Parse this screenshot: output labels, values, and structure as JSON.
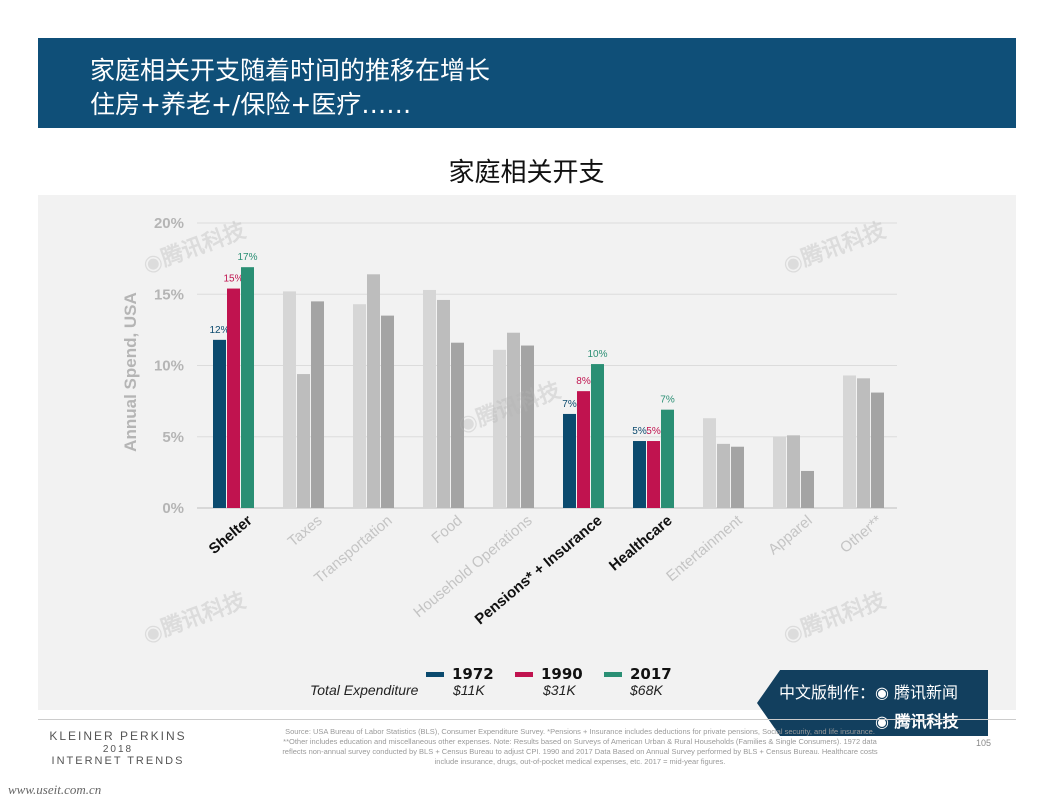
{
  "header": {
    "title_line1": "家庭相关开支随着时间的推移在增长",
    "title_line2": "住房+养老+/保险+医疗……",
    "banner_color": "#0f4f78"
  },
  "chart_data": {
    "type": "bar",
    "title": "家庭相关开支",
    "ylabel": "Annual Spend, USA",
    "ylim": [
      0,
      20
    ],
    "yticks": [
      "0%",
      "5%",
      "10%",
      "15%",
      "20%"
    ],
    "grid": true,
    "categories": [
      "Shelter",
      "Taxes",
      "Transportation",
      "Food",
      "Household Operations",
      "Pensions* + Insurance",
      "Healthcare",
      "Entertainment",
      "Apparel",
      "Other**"
    ],
    "highlighted_categories": [
      "Shelter",
      "Pensions* + Insurance",
      "Healthcare"
    ],
    "series": [
      {
        "name": "1972",
        "color": "#0b4a6e",
        "muted_color": "#d6d6d6",
        "values": [
          11.8,
          15.2,
          14.3,
          15.3,
          11.1,
          6.6,
          4.7,
          6.3,
          5.0,
          9.3
        ]
      },
      {
        "name": "1990",
        "color": "#c0134f",
        "muted_color": "#bdbdbd",
        "values": [
          15.4,
          9.4,
          16.4,
          14.6,
          12.3,
          8.2,
          4.7,
          4.5,
          5.1,
          9.1
        ]
      },
      {
        "name": "2017",
        "color": "#2a8f74",
        "muted_color": "#a4a4a4",
        "values": [
          16.9,
          14.5,
          13.5,
          11.6,
          11.4,
          10.1,
          6.9,
          4.3,
          2.6,
          8.1
        ]
      }
    ],
    "data_labels": {
      "Shelter": [
        "12%",
        "15%",
        "17%"
      ],
      "Pensions* + Insurance": [
        "7%",
        "8%",
        "10%"
      ],
      "Healthcare": [
        "5%",
        "5%",
        "7%"
      ]
    },
    "legend": {
      "placement": "bottom",
      "row_label": "Total Expenditure",
      "expenditures": [
        "$11K",
        "$31K",
        "$68K"
      ]
    }
  },
  "footer": {
    "brand_line1": "KLEINER PERKINS",
    "brand_line2": "2018",
    "brand_line3": "INTERNET TRENDS",
    "source": "Source: USA Bureau of Labor Statistics (BLS), Consumer Expenditure Survey. *Pensions + Insurance includes deductions for private pensions, Social security, and life insurance. **Other includes education and miscellaneous other expenses. Note: Results based on Surveys of American Urban & Rural Households (Families & Single Consumers). 1972 data reflects non-annual survey conducted by BLS + Census Bureau to adjust CPI. 1990 and 2017 Data Based on Annual Survey performed by BLS + Census Bureau. Healthcare costs include insurance, drugs, out-of-pocket medical expenses, etc. 2017 = mid-year figures.",
    "page_number": "105",
    "url": "www.useit.com.cn"
  },
  "badge": {
    "line1": "中文版制作：◉ 腾讯新闻",
    "line2": "◉ 腾讯科技",
    "color": "#123f5e"
  },
  "watermark": "◉腾讯科技"
}
